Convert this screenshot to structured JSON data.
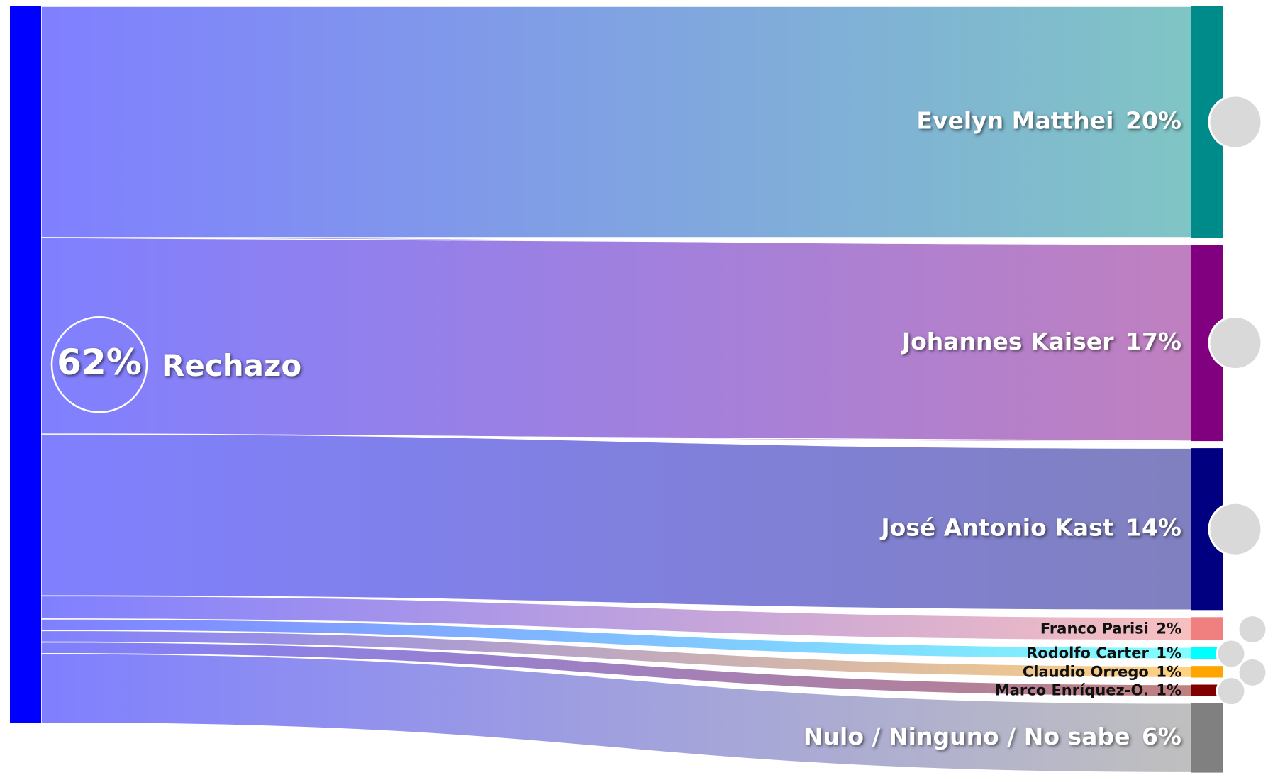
{
  "chart_data": {
    "type": "sankey",
    "source_name": "Rechazo",
    "source_value": 62,
    "source_value_label": "62%",
    "source_color": "#0000ff",
    "categories": [
      "Evelyn Matthei",
      "Johannes Kaiser",
      "José Antonio Kast",
      "Franco Parisi",
      "Rodolfo Carter",
      "Claudio Orrego",
      "Marco Enríquez-O.",
      "Nulo / Ninguno / No sabe"
    ],
    "values": [
      20,
      17,
      14,
      2,
      1,
      1,
      1,
      6
    ],
    "value_labels": [
      "20%",
      "17%",
      "14%",
      "2%",
      "1%",
      "1%",
      "1%",
      "6%"
    ],
    "colors": [
      "#008b8b",
      "#800080",
      "#000080",
      "#f08080",
      "#00ffff",
      "#ffa500",
      "#800000",
      "#808080"
    ]
  }
}
